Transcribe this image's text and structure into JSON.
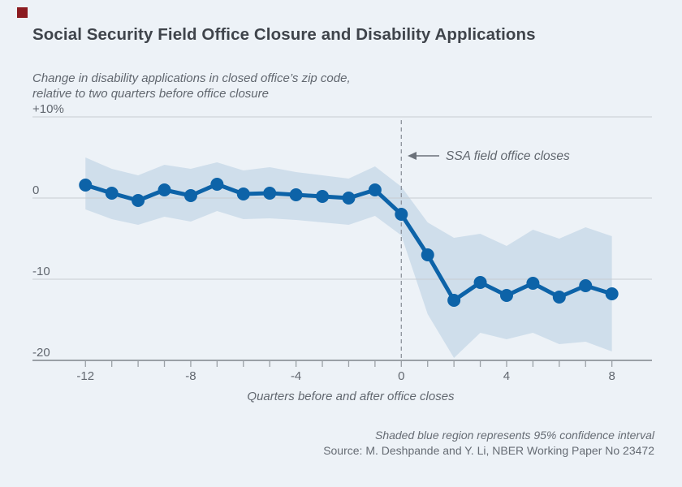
{
  "page": {
    "title": "Social Security Field Office Closure and Disability Applications",
    "subtitle_line1": "Change in disability applications in closed office’s zip code,",
    "subtitle_line2": "relative to two quarters before office closure",
    "footnote_line1": "Shaded blue region represents 95% confidence interval",
    "footnote_line2": "Source: M. Deshpande and Y. Li, NBER Working Paper No 23472",
    "brand_color": "#8b1b20"
  },
  "chart_data": {
    "type": "line",
    "title": "Social Security Field Office Closure and Disability Applications",
    "xlabel": "Quarters before and after office closes",
    "ylabel": "Change in disability applications (%), relative to two quarters before office closure",
    "x": [
      -12,
      -11,
      -10,
      -9,
      -8,
      -7,
      -6,
      -5,
      -4,
      -3,
      -2,
      -1,
      0,
      1,
      2,
      3,
      4,
      5,
      6,
      7,
      8
    ],
    "series": [
      {
        "name": "Change in disability applications",
        "values": [
          1.6,
          0.6,
          -0.3,
          1.0,
          0.3,
          1.7,
          0.5,
          0.6,
          0.4,
          0.2,
          0.0,
          1.0,
          -2.0,
          -7.0,
          -12.6,
          -10.4,
          -12.0,
          -10.5,
          -12.2,
          -10.8,
          -11.8
        ]
      }
    ],
    "ci_upper": [
      5.0,
      3.6,
      2.8,
      4.1,
      3.6,
      4.4,
      3.4,
      3.8,
      3.2,
      2.8,
      2.4,
      3.9,
      1.4,
      -3.0,
      -4.9,
      -4.4,
      -5.9,
      -3.9,
      -5.0,
      -3.6,
      -4.7
    ],
    "ci_lower": [
      -1.4,
      -2.6,
      -3.3,
      -2.3,
      -2.9,
      -1.6,
      -2.6,
      -2.5,
      -2.7,
      -3.0,
      -3.3,
      -2.2,
      -4.6,
      -14.3,
      -19.7,
      -16.6,
      -17.4,
      -16.6,
      -18.0,
      -17.7,
      -18.9
    ],
    "ci_note": "95% confidence interval",
    "annotation": {
      "text": "SSA field office closes",
      "at_x": 0,
      "arrow": "left"
    },
    "event_line_x": 0,
    "yticks": [
      {
        "value": 10,
        "label": "+10%"
      },
      {
        "value": 0,
        "label": "0"
      },
      {
        "value": -10,
        "label": "-10"
      },
      {
        "value": -20,
        "label": "-20"
      }
    ],
    "xtick_labels": [
      -12,
      -8,
      -4,
      0,
      4,
      8
    ],
    "xlim": [
      -12,
      8
    ],
    "ylim": [
      -20,
      10
    ],
    "grid": true,
    "legend_position": "none",
    "colors": {
      "line": "#0d63a8",
      "band": "#cfdeeb",
      "grid": "#c7ccd2",
      "axis": "#9aa0a6",
      "event_line": "#8d939c",
      "annotation": "#6b717a",
      "text": "#61676f",
      "title": "#3f444b",
      "background": "#edf2f7"
    }
  }
}
